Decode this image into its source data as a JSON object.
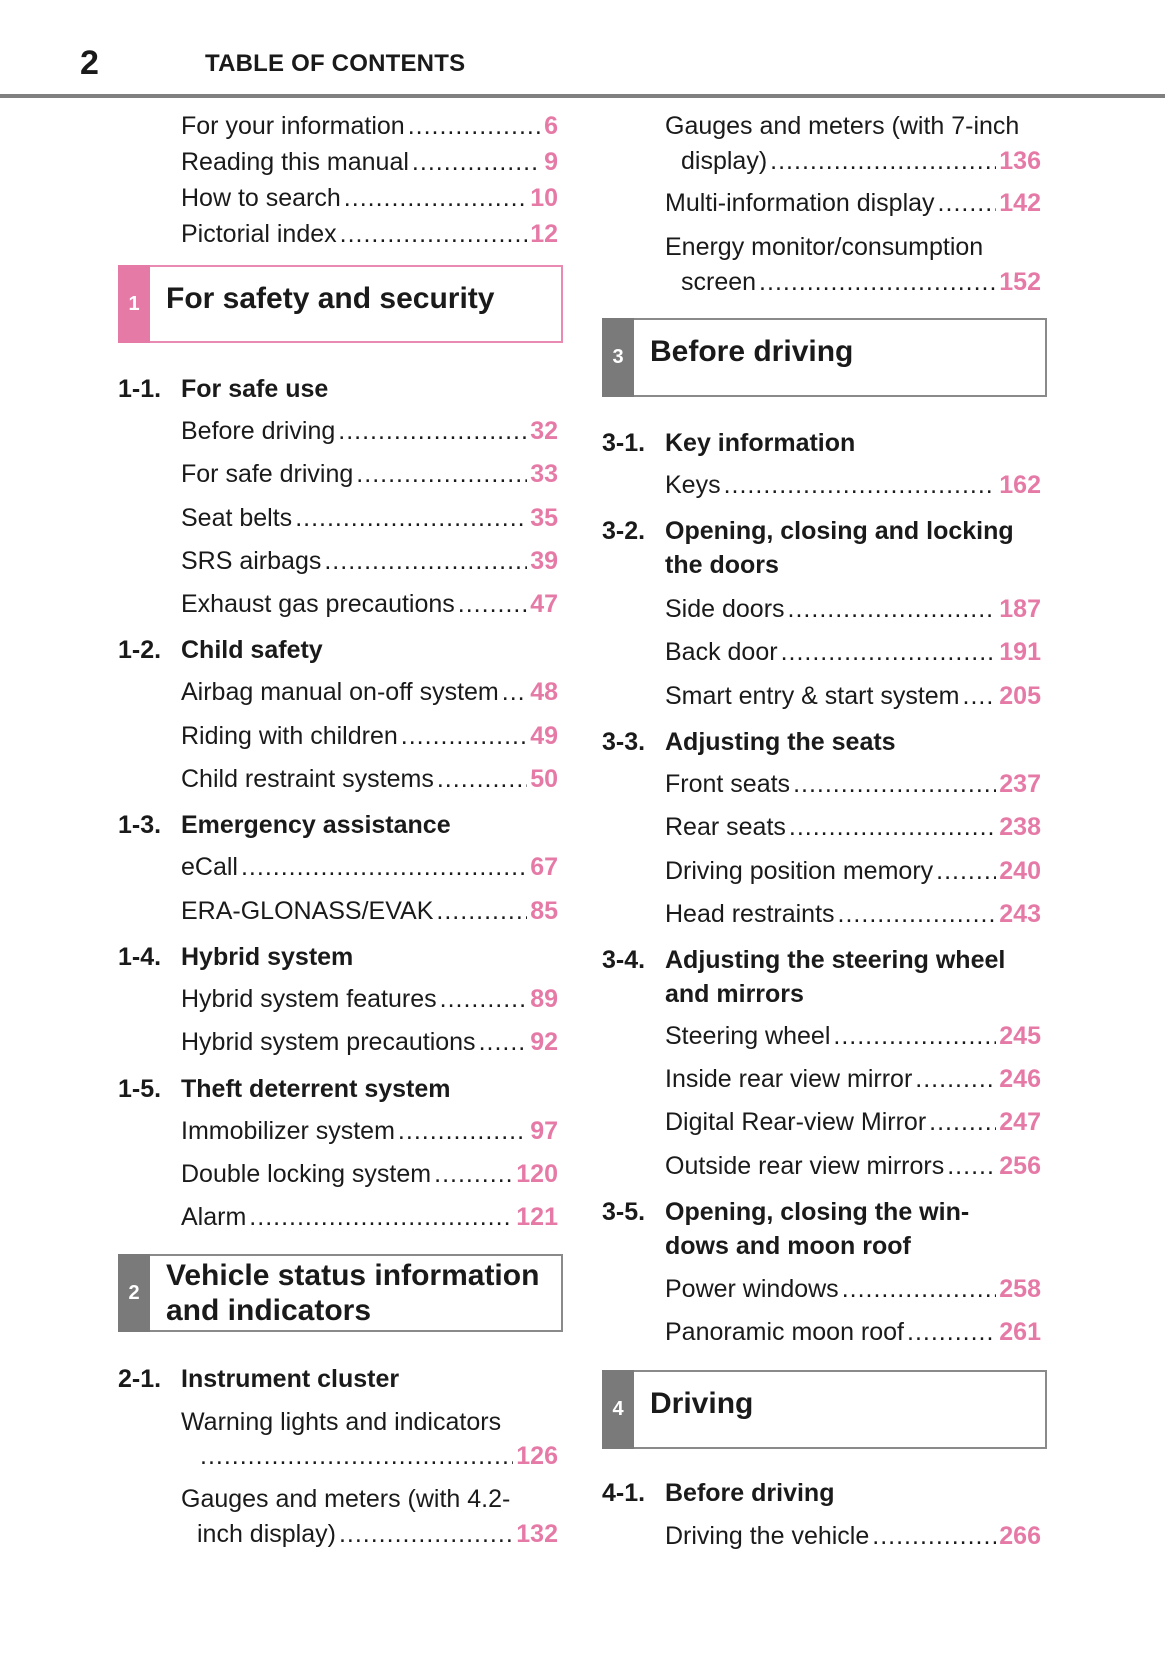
{
  "header": {
    "page_number": "2",
    "title": "TABLE OF CONTENTS"
  },
  "colors": {
    "accent_pink": "#e67aa7",
    "tab_grey": "#7a7a7a"
  },
  "left": [
    {
      "type": "entry",
      "label": "For your information",
      "page": "6"
    },
    {
      "type": "entry",
      "label": "Reading this manual",
      "page": "9"
    },
    {
      "type": "entry",
      "label": "How to search",
      "page": "10"
    },
    {
      "type": "entry",
      "label": "Pictorial index",
      "page": "12"
    },
    {
      "type": "box",
      "num": "1",
      "title_lines": [
        "For safety and security"
      ]
    },
    {
      "type": "heading",
      "num": "1-1.",
      "title_lines": [
        "For safe use"
      ]
    },
    {
      "type": "entry",
      "label": "Before driving",
      "page": "32"
    },
    {
      "type": "entry",
      "label": "For safe driving",
      "page": "33"
    },
    {
      "type": "entry",
      "label": "Seat belts",
      "page": "35"
    },
    {
      "type": "entry",
      "label": "SRS airbags",
      "page": "39"
    },
    {
      "type": "entry",
      "label": "Exhaust gas precautions",
      "page": "47"
    },
    {
      "type": "heading",
      "num": "1-2.",
      "title_lines": [
        "Child safety"
      ]
    },
    {
      "type": "entry",
      "label": "Airbag manual on-off system",
      "page": "48"
    },
    {
      "type": "entry",
      "label": "Riding with children",
      "page": "49"
    },
    {
      "type": "entry",
      "label": "Child restraint systems",
      "page": "50"
    },
    {
      "type": "heading",
      "num": "1-3.",
      "title_lines": [
        "Emergency assistance"
      ]
    },
    {
      "type": "entry",
      "label": "eCall",
      "page": "67"
    },
    {
      "type": "entry",
      "label": "ERA-GLONASS/EVAK",
      "page": "85"
    },
    {
      "type": "heading",
      "num": "1-4.",
      "title_lines": [
        "Hybrid system"
      ]
    },
    {
      "type": "entry",
      "label": "Hybrid system features",
      "page": "89"
    },
    {
      "type": "entry",
      "label": "Hybrid system precautions",
      "page": "92"
    },
    {
      "type": "heading",
      "num": "1-5.",
      "title_lines": [
        "Theft deterrent system"
      ]
    },
    {
      "type": "entry",
      "label": "Immobilizer system",
      "page": "97"
    },
    {
      "type": "entry",
      "label": "Double locking system",
      "page": "120"
    },
    {
      "type": "entry",
      "label": "Alarm",
      "page": "121"
    },
    {
      "type": "box",
      "num": "2",
      "title_lines": [
        "Vehicle status information",
        "and indicators"
      ]
    },
    {
      "type": "heading",
      "num": "2-1.",
      "title_lines": [
        "Instrument cluster"
      ]
    },
    {
      "type": "entry",
      "label": "Warning lights and indicators",
      "cont": "",
      "page": "126"
    },
    {
      "type": "entry",
      "label": "Gauges and meters (with 4.2-",
      "cont": "inch display)",
      "page": "132"
    }
  ],
  "right": [
    {
      "type": "entry",
      "label": "Gauges and meters (with 7-inch",
      "cont": "display)",
      "page": "136"
    },
    {
      "type": "entry",
      "label": "Multi-information display",
      "page": "142"
    },
    {
      "type": "entry",
      "label": "Energy monitor/consumption",
      "cont": "screen",
      "page": "152"
    },
    {
      "type": "box",
      "num": "3",
      "title_lines": [
        "Before driving"
      ]
    },
    {
      "type": "heading",
      "num": "3-1.",
      "title_lines": [
        "Key information"
      ]
    },
    {
      "type": "entry",
      "label": "Keys",
      "page": "162"
    },
    {
      "type": "heading",
      "num": "3-2.",
      "title_lines": [
        "Opening, closing and locking",
        "the doors"
      ]
    },
    {
      "type": "entry",
      "label": "Side doors",
      "page": "187"
    },
    {
      "type": "entry",
      "label": "Back door",
      "page": "191"
    },
    {
      "type": "entry",
      "label": "Smart entry & start system",
      "page": "205"
    },
    {
      "type": "heading",
      "num": "3-3.",
      "title_lines": [
        "Adjusting the seats"
      ]
    },
    {
      "type": "entry",
      "label": "Front seats",
      "page": "237"
    },
    {
      "type": "entry",
      "label": "Rear seats",
      "page": "238"
    },
    {
      "type": "entry",
      "label": "Driving position memory",
      "page": "240"
    },
    {
      "type": "entry",
      "label": "Head restraints",
      "page": "243"
    },
    {
      "type": "heading",
      "num": "3-4.",
      "title_lines": [
        "Adjusting the steering wheel",
        "and mirrors"
      ]
    },
    {
      "type": "entry",
      "label": "Steering wheel",
      "page": "245"
    },
    {
      "type": "entry",
      "label": "Inside rear view mirror",
      "page": "246"
    },
    {
      "type": "entry",
      "label": "Digital Rear-view Mirror",
      "page": "247"
    },
    {
      "type": "entry",
      "label": "Outside rear view mirrors",
      "page": "256"
    },
    {
      "type": "heading",
      "num": "3-5.",
      "title_lines": [
        "Opening, closing the win-",
        "dows and moon roof"
      ]
    },
    {
      "type": "entry",
      "label": "Power windows",
      "page": "258"
    },
    {
      "type": "entry",
      "label": "Panoramic moon roof",
      "page": "261"
    },
    {
      "type": "box",
      "num": "4",
      "title_lines": [
        "Driving"
      ]
    },
    {
      "type": "heading",
      "num": "4-1.",
      "title_lines": [
        "Before driving"
      ]
    },
    {
      "type": "entry",
      "label": "Driving the vehicle",
      "page": "266"
    }
  ]
}
